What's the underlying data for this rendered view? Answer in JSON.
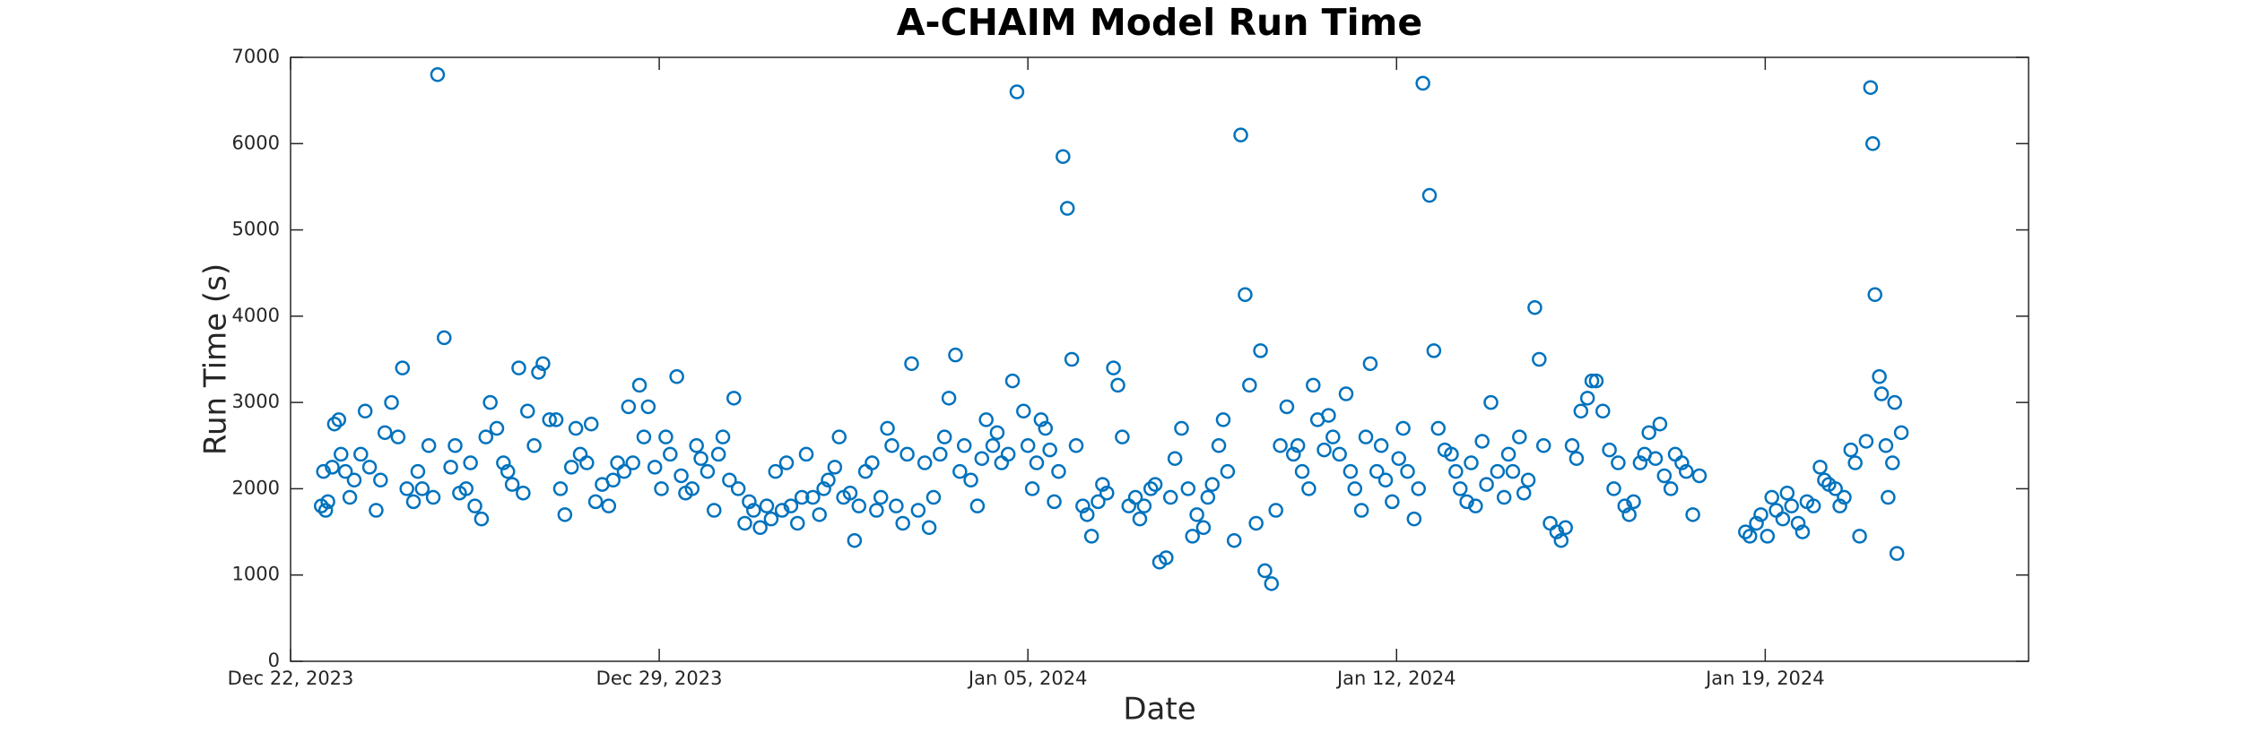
{
  "chart_data": {
    "type": "scatter",
    "title": "A-CHAIM Model Run Time",
    "xlabel": "Date",
    "ylabel": "Run Time (s)",
    "xlim": [
      "2023-12-22",
      "2024-01-24"
    ],
    "xticks": [
      {
        "value": "2023-12-22",
        "label": "Dec 22, 2023"
      },
      {
        "value": "2023-12-29",
        "label": "Dec 29, 2023"
      },
      {
        "value": "2024-01-05",
        "label": "Jan 05, 2024"
      },
      {
        "value": "2024-01-12",
        "label": "Jan 12, 2024"
      },
      {
        "value": "2024-01-19",
        "label": "Jan 19, 2024"
      }
    ],
    "ylim": [
      0,
      7000
    ],
    "yticks": [
      0,
      1000,
      2000,
      3000,
      4000,
      5000,
      6000,
      7000
    ],
    "series": [
      {
        "name": "Run Time",
        "color": "#0072bd",
        "x": [
          "2023-12-22T14:00",
          "2023-12-22T15:00",
          "2023-12-22T16:00",
          "2023-12-22T17:00",
          "2023-12-22T19:00",
          "2023-12-22T20:00",
          "2023-12-22T22:00",
          "2023-12-22T23:00",
          "2023-12-23T01:00",
          "2023-12-23T03:00",
          "2023-12-23T05:00",
          "2023-12-23T08:00",
          "2023-12-23T10:00",
          "2023-12-23T12:00",
          "2023-12-23T15:00",
          "2023-12-23T17:00",
          "2023-12-23T19:00",
          "2023-12-23T22:00",
          "2023-12-24T01:00",
          "2023-12-24T03:00",
          "2023-12-24T05:00",
          "2023-12-24T08:00",
          "2023-12-24T10:00",
          "2023-12-24T12:00",
          "2023-12-24T15:00",
          "2023-12-24T17:00",
          "2023-12-24T19:00",
          "2023-12-24T22:00",
          "2023-12-25T01:00",
          "2023-12-25T03:00",
          "2023-12-25T05:00",
          "2023-12-25T08:00",
          "2023-12-25T10:00",
          "2023-12-25T12:00",
          "2023-12-25T15:00",
          "2023-12-25T17:00",
          "2023-12-25T19:00",
          "2023-12-25T22:00",
          "2023-12-26T01:00",
          "2023-12-26T03:00",
          "2023-12-26T05:00",
          "2023-12-26T08:00",
          "2023-12-26T10:00",
          "2023-12-26T12:00",
          "2023-12-26T15:00",
          "2023-12-26T17:00",
          "2023-12-26T19:00",
          "2023-12-26T22:00",
          "2023-12-27T01:00",
          "2023-12-27T03:00",
          "2023-12-27T05:00",
          "2023-12-27T08:00",
          "2023-12-27T10:00",
          "2023-12-27T12:00",
          "2023-12-27T15:00",
          "2023-12-27T17:00",
          "2023-12-27T19:00",
          "2023-12-27T22:00",
          "2023-12-28T01:00",
          "2023-12-28T03:00",
          "2023-12-28T05:00",
          "2023-12-28T08:00",
          "2023-12-28T10:00",
          "2023-12-28T12:00",
          "2023-12-28T15:00",
          "2023-12-28T17:00",
          "2023-12-28T19:00",
          "2023-12-28T22:00",
          "2023-12-29T01:00",
          "2023-12-29T03:00",
          "2023-12-29T05:00",
          "2023-12-29T08:00",
          "2023-12-29T10:00",
          "2023-12-29T12:00",
          "2023-12-29T15:00",
          "2023-12-29T17:00",
          "2023-12-29T19:00",
          "2023-12-29T22:00",
          "2023-12-30T01:00",
          "2023-12-30T03:00",
          "2023-12-30T05:00",
          "2023-12-30T08:00",
          "2023-12-30T10:00",
          "2023-12-30T12:00",
          "2023-12-30T15:00",
          "2023-12-30T17:00",
          "2023-12-30T19:00",
          "2023-12-30T22:00",
          "2023-12-31T01:00",
          "2023-12-31T03:00",
          "2023-12-31T05:00",
          "2023-12-31T08:00",
          "2023-12-31T10:00",
          "2023-12-31T12:00",
          "2023-12-31T15:00",
          "2023-12-31T17:00",
          "2023-12-31T19:00",
          "2023-12-31T22:00",
          "2024-01-01T01:00",
          "2024-01-01T03:00",
          "2024-01-01T05:00",
          "2024-01-01T08:00",
          "2024-01-01T10:00",
          "2024-01-01T12:00",
          "2024-01-01T15:00",
          "2024-01-01T17:00",
          "2024-01-01T19:00",
          "2024-01-01T22:00",
          "2024-01-02T01:00",
          "2024-01-02T03:00",
          "2024-01-02T05:00",
          "2024-01-02T08:00",
          "2024-01-02T10:00",
          "2024-01-02T12:00",
          "2024-01-02T15:00",
          "2024-01-02T17:00",
          "2024-01-02T19:00",
          "2024-01-02T22:00",
          "2024-01-03T01:00",
          "2024-01-03T03:00",
          "2024-01-03T05:00",
          "2024-01-03T08:00",
          "2024-01-03T10:00",
          "2024-01-03T12:00",
          "2024-01-03T15:00",
          "2024-01-03T17:00",
          "2024-01-03T19:00",
          "2024-01-03T22:00",
          "2024-01-04T01:00",
          "2024-01-04T03:00",
          "2024-01-04T05:00",
          "2024-01-04T08:00",
          "2024-01-04T10:00",
          "2024-01-04T12:00",
          "2024-01-04T15:00",
          "2024-01-04T17:00",
          "2024-01-04T19:00",
          "2024-01-04T22:00",
          "2024-01-05T00:00",
          "2024-01-05T02:00",
          "2024-01-05T04:00",
          "2024-01-05T06:00",
          "2024-01-05T08:00",
          "2024-01-05T10:00",
          "2024-01-05T12:00",
          "2024-01-05T14:00",
          "2024-01-05T16:00",
          "2024-01-05T18:00",
          "2024-01-05T20:00",
          "2024-01-05T22:00",
          "2024-01-06T01:00",
          "2024-01-06T03:00",
          "2024-01-06T05:00",
          "2024-01-06T08:00",
          "2024-01-06T10:00",
          "2024-01-06T12:00",
          "2024-01-06T15:00",
          "2024-01-06T17:00",
          "2024-01-06T19:00",
          "2024-01-06T22:00",
          "2024-01-07T01:00",
          "2024-01-07T03:00",
          "2024-01-07T05:00",
          "2024-01-07T08:00",
          "2024-01-07T10:00",
          "2024-01-07T12:00",
          "2024-01-07T15:00",
          "2024-01-07T17:00",
          "2024-01-07T19:00",
          "2024-01-07T22:00",
          "2024-01-08T01:00",
          "2024-01-08T03:00",
          "2024-01-08T05:00",
          "2024-01-08T08:00",
          "2024-01-08T10:00",
          "2024-01-08T12:00",
          "2024-01-08T15:00",
          "2024-01-08T17:00",
          "2024-01-08T19:00",
          "2024-01-08T22:00",
          "2024-01-09T01:00",
          "2024-01-09T03:00",
          "2024-01-09T05:00",
          "2024-01-09T08:00",
          "2024-01-09T10:00",
          "2024-01-09T12:00",
          "2024-01-09T15:00",
          "2024-01-09T17:00",
          "2024-01-09T19:00",
          "2024-01-09T22:00",
          "2024-01-10T01:00",
          "2024-01-10T03:00",
          "2024-01-10T05:00",
          "2024-01-10T08:00",
          "2024-01-10T10:00",
          "2024-01-10T12:00",
          "2024-01-10T15:00",
          "2024-01-10T17:00",
          "2024-01-10T19:00",
          "2024-01-10T22:00",
          "2024-01-11T01:00",
          "2024-01-11T03:00",
          "2024-01-11T05:00",
          "2024-01-11T08:00",
          "2024-01-11T10:00",
          "2024-01-11T12:00",
          "2024-01-11T15:00",
          "2024-01-11T17:00",
          "2024-01-11T19:00",
          "2024-01-11T22:00",
          "2024-01-12T01:00",
          "2024-01-12T03:00",
          "2024-01-12T05:00",
          "2024-01-12T08:00",
          "2024-01-12T10:00",
          "2024-01-12T12:00",
          "2024-01-12T15:00",
          "2024-01-12T17:00",
          "2024-01-12T19:00",
          "2024-01-12T22:00",
          "2024-01-13T01:00",
          "2024-01-13T03:00",
          "2024-01-13T05:00",
          "2024-01-13T08:00",
          "2024-01-13T10:00",
          "2024-01-13T12:00",
          "2024-01-13T15:00",
          "2024-01-13T17:00",
          "2024-01-13T19:00",
          "2024-01-13T22:00",
          "2024-01-14T01:00",
          "2024-01-14T03:00",
          "2024-01-14T05:00",
          "2024-01-14T08:00",
          "2024-01-14T10:00",
          "2024-01-14T12:00",
          "2024-01-14T15:00",
          "2024-01-14T17:00",
          "2024-01-14T19:00",
          "2024-01-14T22:00",
          "2024-01-15T01:00",
          "2024-01-15T03:00",
          "2024-01-15T05:00",
          "2024-01-15T08:00",
          "2024-01-15T10:00",
          "2024-01-15T12:00",
          "2024-01-15T15:00",
          "2024-01-15T17:00",
          "2024-01-15T19:00",
          "2024-01-15T22:00",
          "2024-01-16T01:00",
          "2024-01-16T03:00",
          "2024-01-16T05:00",
          "2024-01-16T08:00",
          "2024-01-16T10:00",
          "2024-01-16T12:00",
          "2024-01-16T15:00",
          "2024-01-16T17:00",
          "2024-01-16T19:00",
          "2024-01-16T22:00",
          "2024-01-17T00:00",
          "2024-01-17T02:00",
          "2024-01-17T05:00",
          "2024-01-17T07:00",
          "2024-01-17T10:00",
          "2024-01-17T12:00",
          "2024-01-17T15:00",
          "2024-01-17T18:00",
          "2024-01-18T15:00",
          "2024-01-18T17:00",
          "2024-01-18T20:00",
          "2024-01-18T22:00",
          "2024-01-19T01:00",
          "2024-01-19T03:00",
          "2024-01-19T05:00",
          "2024-01-19T08:00",
          "2024-01-19T10:00",
          "2024-01-19T12:00",
          "2024-01-19T15:00",
          "2024-01-19T17:00",
          "2024-01-19T19:00",
          "2024-01-19T22:00",
          "2024-01-20T01:00",
          "2024-01-20T03:00",
          "2024-01-20T05:00",
          "2024-01-20T08:00",
          "2024-01-20T10:00",
          "2024-01-20T12:00",
          "2024-01-20T15:00",
          "2024-01-20T17:00",
          "2024-01-20T19:00",
          "2024-01-20T22:00",
          "2024-01-21T00:00",
          "2024-01-21T01:00",
          "2024-01-21T02:00",
          "2024-01-21T04:00",
          "2024-01-21T05:00",
          "2024-01-21T07:00",
          "2024-01-21T08:00",
          "2024-01-21T10:00",
          "2024-01-21T11:00",
          "2024-01-21T12:00",
          "2024-01-21T14:00"
        ],
        "values": [
          1800,
          2200,
          1750,
          1850,
          2250,
          2750,
          2800,
          2400,
          2200,
          1900,
          2100,
          2400,
          2900,
          2250,
          1750,
          2100,
          2650,
          3000,
          2600,
          3400,
          2000,
          1850,
          2200,
          2000,
          2500,
          1900,
          6800,
          3750,
          2250,
          2500,
          1950,
          2000,
          2300,
          1800,
          1650,
          2600,
          3000,
          2700,
          2300,
          2200,
          2050,
          3400,
          1950,
          2900,
          2500,
          3350,
          3450,
          2800,
          2800,
          2000,
          1700,
          2250,
          2700,
          2400,
          2300,
          2750,
          1850,
          2050,
          1800,
          2100,
          2300,
          2200,
          2950,
          2300,
          3200,
          2600,
          2950,
          2250,
          2000,
          2600,
          2400,
          3300,
          2150,
          1950,
          2000,
          2500,
          2350,
          2200,
          1750,
          2400,
          2600,
          2100,
          3050,
          2000,
          1600,
          1850,
          1750,
          1550,
          1800,
          1650,
          2200,
          1750,
          2300,
          1800,
          1600,
          1900,
          2400,
          1900,
          1700,
          2000,
          2100,
          2250,
          2600,
          1900,
          1950,
          1400,
          1800,
          2200,
          2300,
          1750,
          1900,
          2700,
          2500,
          1800,
          1600,
          2400,
          3450,
          1750,
          2300,
          1550,
          1900,
          2400,
          2600,
          3050,
          3550,
          2200,
          2500,
          2100,
          1800,
          2350,
          2800,
          2500,
          2650,
          2300,
          2400,
          3250,
          6600,
          2900,
          2500,
          2000,
          2300,
          2800,
          2700,
          2450,
          1850,
          2200,
          5850,
          5250,
          3500,
          2500,
          1800,
          1700,
          1450,
          1850,
          2050,
          1950,
          3400,
          3200,
          2600,
          1800,
          1900,
          1650,
          1800,
          2000,
          2050,
          1150,
          1200,
          1900,
          2350,
          2700,
          2000,
          1450,
          1700,
          1550,
          1900,
          2050,
          2500,
          2800,
          2200,
          1400,
          6100,
          4250,
          3200,
          1600,
          3600,
          1050,
          900,
          1750,
          2500,
          2950,
          2400,
          2500,
          2200,
          2000,
          3200,
          2800,
          2450,
          2850,
          2600,
          2400,
          3100,
          2200,
          2000,
          1750,
          2600,
          3450,
          2200,
          2500,
          2100,
          1850,
          2350,
          2700,
          2200,
          1650,
          2000,
          6700,
          5400,
          3600,
          2700,
          2450,
          2400,
          2200,
          2000,
          1850,
          2300,
          1800,
          2550,
          2050,
          3000,
          2200,
          1900,
          2400,
          2200,
          2600,
          1950,
          2100,
          4100,
          3500,
          2500,
          1600,
          1500,
          1400,
          1550,
          2500,
          2350,
          2900,
          3050,
          3250,
          3250,
          2900,
          2450,
          2000,
          2300,
          1800,
          1700,
          1850,
          2300,
          2400,
          2650,
          2350,
          2750,
          2150,
          2000,
          2400,
          2300,
          2200,
          1700,
          2150,
          1500,
          1450,
          1600,
          1700,
          1450,
          1900,
          1750,
          1650,
          1950,
          1800,
          1600,
          1500,
          1850,
          1800,
          2250,
          2100,
          2050,
          2000,
          1800,
          1900,
          2450,
          2300,
          1450,
          2550,
          6650,
          6000,
          4250,
          3300,
          3100,
          2500,
          1900,
          2300,
          3000,
          1250,
          2650
        ]
      }
    ]
  }
}
